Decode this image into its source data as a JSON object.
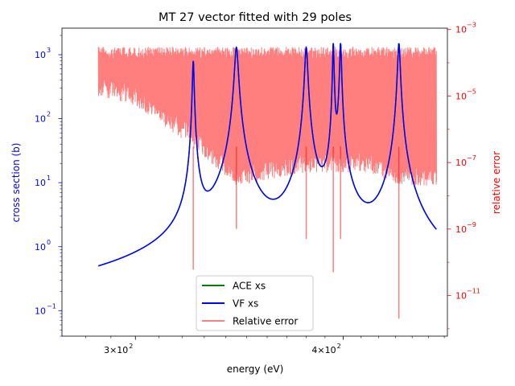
{
  "chart_data": {
    "type": "line",
    "title": "MT 27 vector fitted with 29 poles",
    "xlabel": "energy (eV)",
    "ylabel": "cross section (b)",
    "y2label": "relative error",
    "xscale": "log",
    "yscale": "log",
    "y2scale": "log",
    "xlim": [
      271,
      462
    ],
    "ylim": [
      0.04,
      2600
    ],
    "y2lim": [
      6e-13,
      0.0011
    ],
    "x_ticks": [
      {
        "value": 300,
        "base": "3",
        "mid": "×10",
        "exp": "2"
      },
      {
        "value": 400,
        "base": "4",
        "mid": "×10",
        "exp": "2"
      }
    ],
    "y_ticks": [
      {
        "value": 0.1,
        "base": "10",
        "exp": "−1"
      },
      {
        "value": 1,
        "base": "10",
        "exp": "0"
      },
      {
        "value": 10,
        "base": "10",
        "exp": "1"
      },
      {
        "value": 100,
        "base": "10",
        "exp": "2"
      },
      {
        "value": 1000,
        "base": "10",
        "exp": "3"
      }
    ],
    "y2_ticks": [
      {
        "value": 1e-11,
        "base": "10",
        "exp": "−11"
      },
      {
        "value": 1e-09,
        "base": "10",
        "exp": "−9"
      },
      {
        "value": 1e-07,
        "base": "10",
        "exp": "−7"
      },
      {
        "value": 1e-05,
        "base": "10",
        "exp": "−5"
      },
      {
        "value": 0.001,
        "base": "10",
        "exp": "−3"
      }
    ],
    "x_range_data": [
      285,
      455
    ],
    "background_cross_section": {
      "a": 0.065,
      "b": 0.08
    },
    "resonances": [
      {
        "energy": 325,
        "peak": 800,
        "width": 0.35
      },
      {
        "energy": 345,
        "peak": 1300,
        "width": 0.8
      },
      {
        "energy": 380,
        "peak": 1300,
        "width": 0.7
      },
      {
        "energy": 394.5,
        "peak": 1500,
        "width": 0.35
      },
      {
        "energy": 398.5,
        "peak": 1500,
        "width": 0.45
      },
      {
        "energy": 432,
        "peak": 1500,
        "width": 0.7
      }
    ],
    "relative_error": {
      "upper_envelope": [
        [
          285,
          0.0003
        ],
        [
          300,
          0.0003
        ],
        [
          455,
          0.0003
        ]
      ],
      "lower_envelope": [
        [
          285,
          1e-05
        ],
        [
          300,
          5e-06
        ],
        [
          320,
          5e-07
        ],
        [
          345,
          2e-08
        ],
        [
          380,
          5e-08
        ],
        [
          395,
          5e-08
        ],
        [
          415,
          5e-08
        ],
        [
          432,
          2e-08
        ],
        [
          455,
          2e-08
        ]
      ],
      "dips": [
        {
          "energy": 325,
          "value": 6e-11
        },
        {
          "energy": 345,
          "value": 1e-09
        },
        {
          "energy": 380,
          "value": 5e-10
        },
        {
          "energy": 394.5,
          "value": 5e-11
        },
        {
          "energy": 398.5,
          "value": 5e-10
        },
        {
          "energy": 432,
          "value": 2e-12
        }
      ]
    },
    "legend_position": "lower center",
    "series": [
      {
        "name": "ACE xs",
        "color": "#008000"
      },
      {
        "name": "VF xs",
        "color": "#0000ff"
      },
      {
        "name": "Relative error",
        "color": "#ff8080"
      }
    ],
    "colors": {
      "left_axis": "#0000ff",
      "right_axis": "#ff0000"
    }
  }
}
